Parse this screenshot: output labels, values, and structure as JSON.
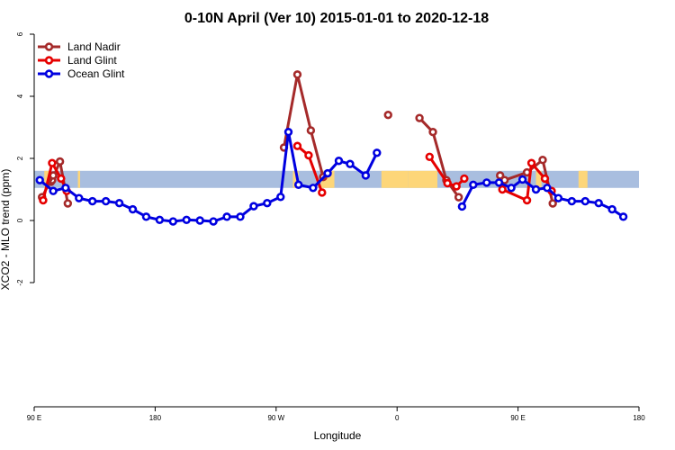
{
  "chart_data": {
    "type": "line",
    "title": "0-10N April (Ver 10)   2015-01-01 to 2020-12-18",
    "xlabel": "Longitude",
    "ylabel": "XCO2 - MLO trend (ppm)",
    "xlim": [
      -90,
      180
    ],
    "ylim": [
      -6,
      6
    ],
    "x_ticks": [
      {
        "value": -90,
        "label": "90 E"
      },
      {
        "value": -36,
        "label": "180"
      },
      {
        "value": 18,
        "label": "90 W"
      },
      {
        "value": 72,
        "label": "0"
      },
      {
        "value": 126,
        "label": "90 E"
      },
      {
        "value": 180,
        "label": "180"
      }
    ],
    "y_ticks": [
      -2,
      0,
      2,
      4,
      6
    ],
    "grid": false,
    "legend_position": "top-left",
    "band": {
      "y_range": [
        1.05,
        1.6
      ],
      "ocean_color": "#a9bedf",
      "land_color": "#fdd679"
    },
    "land_spans": [
      [
        -85.5,
        -83.5
      ],
      [
        -70.5,
        -69.5
      ],
      [
        25.5,
        28
      ],
      [
        38,
        44
      ],
      [
        65,
        77
      ],
      [
        77,
        90
      ],
      [
        134,
        136.5
      ],
      [
        153,
        157
      ]
    ],
    "series": [
      {
        "name": "Land Nadir",
        "color": "#a52a2a",
        "segments": [
          [
            [
              -82.5,
              1.25
            ],
            [
              -82.0,
              1.3
            ],
            [
              -78.5,
              1.9
            ],
            [
              -75.0,
              0.55
            ]
          ],
          [
            [
              -86.5,
              0.75
            ],
            [
              -81.5,
              1.45
            ]
          ],
          [
            [
              21.5,
              2.35
            ],
            [
              27.5,
              4.7
            ],
            [
              33.5,
              2.9
            ],
            [
              39.0,
              1.4
            ]
          ],
          [
            [
              68.0,
              3.4
            ]
          ],
          [
            [
              82.0,
              3.3
            ],
            [
              88.0,
              2.85
            ],
            [
              94.0,
              1.3
            ],
            [
              99.5,
              0.75
            ]
          ],
          [
            [
              118.0,
              1.45
            ],
            [
              120.0,
              1.3
            ],
            [
              130.0,
              1.55
            ],
            [
              137.0,
              1.95
            ],
            [
              141.5,
              0.55
            ]
          ]
        ]
      },
      {
        "name": "Land Glint",
        "color": "#e60000",
        "segments": [
          [
            [
              -86.0,
              0.65
            ],
            [
              -82.0,
              1.85
            ],
            [
              -78.0,
              1.35
            ],
            [
              -75.5,
              0.95
            ]
          ],
          [
            [
              27.5,
              2.4
            ],
            [
              32.5,
              2.1
            ],
            [
              38.5,
              0.9
            ]
          ],
          [
            [
              86.5,
              2.05
            ],
            [
              94.5,
              1.2
            ],
            [
              98.5,
              1.1
            ],
            [
              102.0,
              1.35
            ]
          ],
          [
            [
              119.0,
              1.0
            ],
            [
              130.0,
              0.65
            ],
            [
              132.0,
              1.85
            ],
            [
              138.0,
              1.35
            ],
            [
              141.0,
              0.95
            ]
          ]
        ]
      },
      {
        "name": "Ocean Glint",
        "color": "#0000e0",
        "segments": [
          [
            [
              -87.5,
              1.3
            ],
            [
              -81.5,
              0.95
            ],
            [
              -76.0,
              1.05
            ],
            [
              -70.0,
              0.72
            ],
            [
              -64.0,
              0.62
            ],
            [
              -58.0,
              0.62
            ],
            [
              -52.0,
              0.56
            ],
            [
              -46.0,
              0.36
            ],
            [
              -40.0,
              0.12
            ],
            [
              -34.0,
              0.02
            ],
            [
              -28.0,
              -0.03
            ],
            [
              -22.0,
              0.02
            ],
            [
              -16.0,
              0.0
            ],
            [
              -10.0,
              -0.03
            ],
            [
              -4.0,
              0.12
            ],
            [
              2.0,
              0.12
            ],
            [
              8.0,
              0.46
            ],
            [
              14.0,
              0.56
            ],
            [
              20.0,
              0.76
            ],
            [
              23.5,
              2.85
            ],
            [
              28.0,
              1.15
            ],
            [
              34.5,
              1.05
            ],
            [
              41.0,
              1.52
            ],
            [
              46.0,
              1.92
            ],
            [
              51.0,
              1.82
            ],
            [
              58.0,
              1.45
            ],
            [
              63.0,
              2.18
            ]
          ],
          [
            [
              101.0,
              0.45
            ],
            [
              106.0,
              1.15
            ],
            [
              112.0,
              1.22
            ],
            [
              117.5,
              1.22
            ],
            [
              123.0,
              1.05
            ],
            [
              128.0,
              1.32
            ],
            [
              134.0,
              1.0
            ],
            [
              139.0,
              1.05
            ],
            [
              144.0,
              0.72
            ],
            [
              150.0,
              0.62
            ],
            [
              156.0,
              0.62
            ],
            [
              162.0,
              0.56
            ],
            [
              168.0,
              0.36
            ],
            [
              173.0,
              0.12
            ]
          ]
        ]
      }
    ]
  }
}
